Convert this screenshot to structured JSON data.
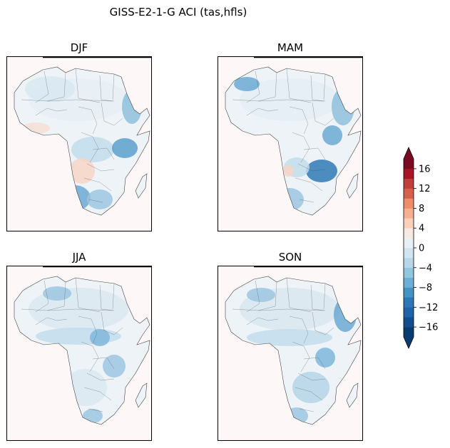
{
  "figure": {
    "title": "GISS-E2-1-G ACI (tas,hfls)"
  },
  "panels": [
    {
      "season": "DJF"
    },
    {
      "season": "MAM"
    },
    {
      "season": "JJA"
    },
    {
      "season": "SON"
    }
  ],
  "colorbar": {
    "tick_labels": [
      "16",
      "12",
      "8",
      "4",
      "0",
      "−4",
      "−8",
      "−12",
      "−16"
    ],
    "tick_values": [
      16,
      12,
      8,
      4,
      0,
      -4,
      -8,
      -12,
      -16
    ],
    "range": [
      -18,
      18
    ],
    "extend": "both",
    "colors": [
      "#0a3b70",
      "#134d8d",
      "#1f63a8",
      "#2d77b7",
      "#4393c3",
      "#6baed6",
      "#92c5de",
      "#b7d7e8",
      "#d1e5f0",
      "#e8f0f5",
      "#f7e8e2",
      "#fbd0b9",
      "#f6b08f",
      "#ec8d6c",
      "#d6604d",
      "#c13f3a",
      "#a81428",
      "#7a0a23"
    ]
  }
}
